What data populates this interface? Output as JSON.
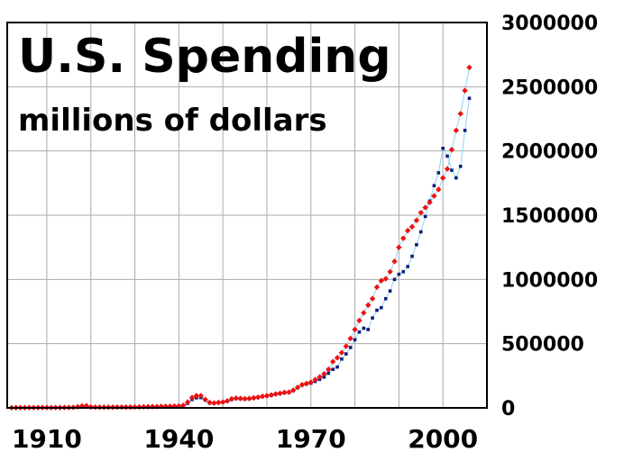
{
  "chart_data": {
    "type": "scatter",
    "title": "U.S. Spending",
    "subtitle": "millions of dollars",
    "xlabel": "",
    "ylabel": "",
    "xlim": [
      1901,
      2010
    ],
    "ylim": [
      0,
      3000000
    ],
    "x_ticks": [
      "1910",
      "1940",
      "1970",
      "2000"
    ],
    "y_ticks": [
      "0",
      "500000",
      "1000000",
      "1500000",
      "2000000",
      "2500000",
      "3000000"
    ],
    "grid": true,
    "legend": "none",
    "colors": {
      "series_red": "#ee1111",
      "series_blue": "#0a1f7a",
      "connector": "#8fd3f4",
      "grid": "#aaaaaa",
      "frame": "#000000"
    },
    "series": [
      {
        "color": "#ee1111",
        "marker": "diamond",
        "x": [
          1902,
          1903,
          1904,
          1905,
          1906,
          1907,
          1908,
          1909,
          1910,
          1911,
          1912,
          1913,
          1914,
          1915,
          1916,
          1917,
          1918,
          1919,
          1920,
          1921,
          1922,
          1923,
          1924,
          1925,
          1926,
          1927,
          1928,
          1929,
          1930,
          1931,
          1932,
          1933,
          1934,
          1935,
          1936,
          1937,
          1938,
          1939,
          1940,
          1941,
          1942,
          1943,
          1944,
          1945,
          1946,
          1947,
          1948,
          1949,
          1950,
          1951,
          1952,
          1953,
          1954,
          1955,
          1956,
          1957,
          1958,
          1959,
          1960,
          1961,
          1962,
          1963,
          1964,
          1965,
          1966,
          1967,
          1968,
          1969,
          1970,
          1971,
          1972,
          1973,
          1974,
          1975,
          1976,
          1977,
          1978,
          1979,
          1980,
          1981,
          1982,
          1983,
          1984,
          1985,
          1986,
          1987,
          1988,
          1989,
          1990,
          1991,
          1992,
          1993,
          1994,
          1995,
          1996,
          1997,
          1998,
          1999,
          2000,
          2001,
          2002,
          2003,
          2004,
          2005,
          2006
        ],
        "y": [
          1600,
          1700,
          1800,
          1800,
          1900,
          2000,
          2200,
          2300,
          2300,
          2400,
          2500,
          2600,
          2800,
          3000,
          3600,
          8000,
          15000,
          16000,
          7000,
          6000,
          5300,
          5300,
          5300,
          5300,
          5500,
          5700,
          5900,
          6200,
          6600,
          7300,
          8000,
          9000,
          10000,
          10000,
          11500,
          12000,
          12500,
          13500,
          14000,
          20000,
          45000,
          80000,
          95000,
          95000,
          65000,
          42000,
          38000,
          42000,
          45000,
          54000,
          70000,
          76000,
          73000,
          71000,
          73000,
          78000,
          83000,
          90000,
          95000,
          100000,
          108000,
          113000,
          120000,
          122000,
          138000,
          160000,
          180000,
          190000,
          200000,
          220000,
          240000,
          265000,
          300000,
          360000,
          390000,
          430000,
          480000,
          540000,
          610000,
          680000,
          740000,
          800000,
          850000,
          940000,
          990000,
          1005000,
          1060000,
          1140000,
          1250000,
          1320000,
          1380000,
          1410000,
          1460000,
          1520000,
          1560000,
          1600000,
          1650000,
          1700000,
          1790000,
          1860000,
          2010000,
          2160000,
          2290000,
          2470000,
          2650000
        ]
      },
      {
        "color": "#0a1f7a",
        "marker": "square",
        "x": [
          1940,
          1941,
          1942,
          1943,
          1944,
          1945,
          1946,
          1947,
          1948,
          1949,
          1950,
          1951,
          1952,
          1953,
          1954,
          1955,
          1956,
          1957,
          1958,
          1959,
          1960,
          1961,
          1962,
          1963,
          1964,
          1965,
          1966,
          1967,
          1968,
          1969,
          1970,
          1971,
          1972,
          1973,
          1974,
          1975,
          1976,
          1977,
          1978,
          1979,
          1980,
          1981,
          1982,
          1983,
          1984,
          1985,
          1986,
          1987,
          1988,
          1989,
          1990,
          1991,
          1992,
          1993,
          1994,
          1995,
          1996,
          1997,
          1998,
          1999,
          2000,
          2001,
          2002,
          2003,
          2004,
          2005,
          2006
        ],
        "y": [
          9000,
          13000,
          35000,
          65000,
          78000,
          80000,
          60000,
          38000,
          35000,
          40000,
          44000,
          52000,
          65000,
          72000,
          70000,
          69000,
          71000,
          76000,
          82000,
          88000,
          92000,
          98000,
          106000,
          111000,
          118000,
          120000,
          134000,
          157000,
          178000,
          185000,
          192000,
          206000,
          222000,
          240000,
          270000,
          300000,
          318000,
          380000,
          420000,
          470000,
          530000,
          590000,
          620000,
          610000,
          700000,
          760000,
          780000,
          850000,
          910000,
          1000000,
          1040000,
          1060000,
          1100000,
          1180000,
          1270000,
          1370000,
          1490000,
          1610000,
          1730000,
          1830000,
          2020000,
          1960000,
          1850000,
          1790000,
          1880000,
          2160000,
          2410000
        ]
      }
    ]
  }
}
